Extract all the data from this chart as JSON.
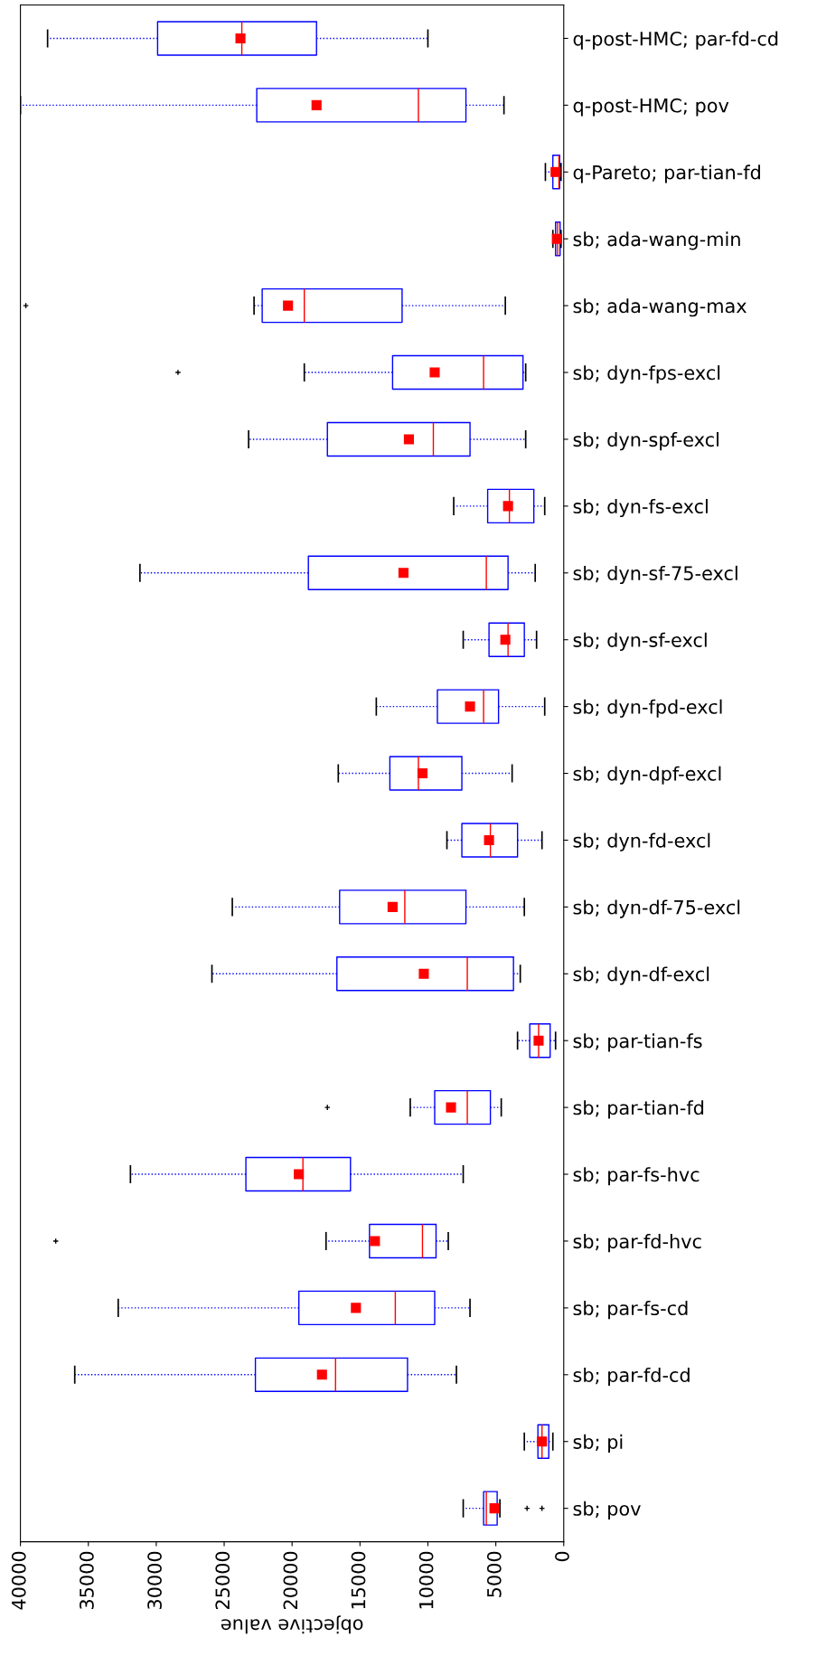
{
  "chart_data": {
    "type": "box",
    "orientation": "horizontal",
    "xlabel": "objective value",
    "categories": [
      "q-post-HMC; par-fd-cd",
      "q-post-HMC; pov",
      "q-Pareto; par-tian-fd",
      "sb; ada-wang-min",
      "sb; ada-wang-max",
      "sb; dyn-fps-excl",
      "sb; dyn-spf-excl",
      "sb; dyn-fs-excl",
      "sb; dyn-sf-75-excl",
      "sb; dyn-sf-excl",
      "sb; dyn-fpd-excl",
      "sb; dyn-dpf-excl",
      "sb; dyn-fd-excl",
      "sb; dyn-df-75-excl",
      "sb; dyn-df-excl",
      "sb; par-tian-fs",
      "sb; par-tian-fd",
      "sb; par-fs-hvc",
      "sb; par-fd-hvc",
      "sb; par-fs-cd",
      "sb; par-fd-cd",
      "sb; pi",
      "sb; pov"
    ],
    "series": [
      {
        "color": "#0000ff",
        "boxes": [
          {
            "low": 10000,
            "q1": 18200,
            "median": 23700,
            "q3": 29900,
            "high": 38000,
            "mean": 23800
          },
          {
            "low": 4400,
            "q1": 7200,
            "median": 10700,
            "q3": 22600,
            "high": 40000,
            "mean": 18200
          },
          {
            "low": 200,
            "q1": 300,
            "median": 350,
            "q3": 800,
            "high": 1350,
            "mean": 600
          },
          {
            "low": 200,
            "q1": 270,
            "median": 450,
            "q3": 600,
            "high": 800,
            "mean": 500
          },
          {
            "low": 4300,
            "q1": 11900,
            "median": 19100,
            "q3": 22200,
            "high": 22800,
            "mean": 20300,
            "outliers": [
              39600
            ]
          },
          {
            "low": 2800,
            "q1": 3000,
            "median": 5900,
            "q3": 12600,
            "high": 19100,
            "mean": 9500,
            "outliers": [
              28400
            ]
          },
          {
            "low": 2800,
            "q1": 6900,
            "median": 9600,
            "q3": 17400,
            "high": 23200,
            "mean": 11400
          },
          {
            "low": 1400,
            "q1": 2200,
            "median": 4000,
            "q3": 5600,
            "high": 8100,
            "mean": 4100
          },
          {
            "low": 2100,
            "q1": 4100,
            "median": 5700,
            "q3": 18800,
            "high": 31200,
            "mean": 11800
          },
          {
            "low": 2000,
            "q1": 2900,
            "median": 4100,
            "q3": 5500,
            "high": 7400,
            "mean": 4300
          },
          {
            "low": 1400,
            "q1": 4800,
            "median": 5900,
            "q3": 9300,
            "high": 13800,
            "mean": 6900
          },
          {
            "low": 3800,
            "q1": 7500,
            "median": 10700,
            "q3": 12800,
            "high": 16600,
            "mean": 10400
          },
          {
            "low": 1600,
            "q1": 3400,
            "median": 5400,
            "q3": 7500,
            "high": 8600,
            "mean": 5500
          },
          {
            "low": 2900,
            "q1": 7200,
            "median": 11700,
            "q3": 16500,
            "high": 24400,
            "mean": 12600
          },
          {
            "low": 3200,
            "q1": 3700,
            "median": 7100,
            "q3": 16700,
            "high": 25900,
            "mean": 10300
          },
          {
            "low": 600,
            "q1": 1000,
            "median": 1850,
            "q3": 2500,
            "high": 3400,
            "mean": 1850
          },
          {
            "low": 4600,
            "q1": 5400,
            "median": 7100,
            "q3": 9500,
            "high": 11300,
            "mean": 8300,
            "outliers": [
              17400
            ]
          },
          {
            "low": 7400,
            "q1": 15700,
            "median": 19200,
            "q3": 23400,
            "high": 31900,
            "mean": 19500
          },
          {
            "low": 8500,
            "q1": 9400,
            "median": 10400,
            "q3": 14300,
            "high": 17500,
            "mean": 13900,
            "outliers": [
              37400
            ]
          },
          {
            "low": 6900,
            "q1": 9500,
            "median": 12400,
            "q3": 19500,
            "high": 32800,
            "mean": 15300
          },
          {
            "low": 7900,
            "q1": 11500,
            "median": 16800,
            "q3": 22700,
            "high": 36000,
            "mean": 17800
          },
          {
            "low": 800,
            "q1": 1100,
            "median": 1600,
            "q3": 1900,
            "high": 2900,
            "mean": 1600
          },
          {
            "low": 4700,
            "q1": 4900,
            "median": 5700,
            "q3": 5900,
            "high": 7400,
            "mean": 5100,
            "outliers": [
              2700,
              1600
            ]
          }
        ]
      }
    ],
    "xlim": [
      40000,
      0
    ],
    "xticks": [
      0,
      5000,
      10000,
      15000,
      20000,
      25000,
      30000,
      35000,
      40000
    ],
    "grid": false,
    "legend": false,
    "marker": "square",
    "line_style": "dotted"
  }
}
